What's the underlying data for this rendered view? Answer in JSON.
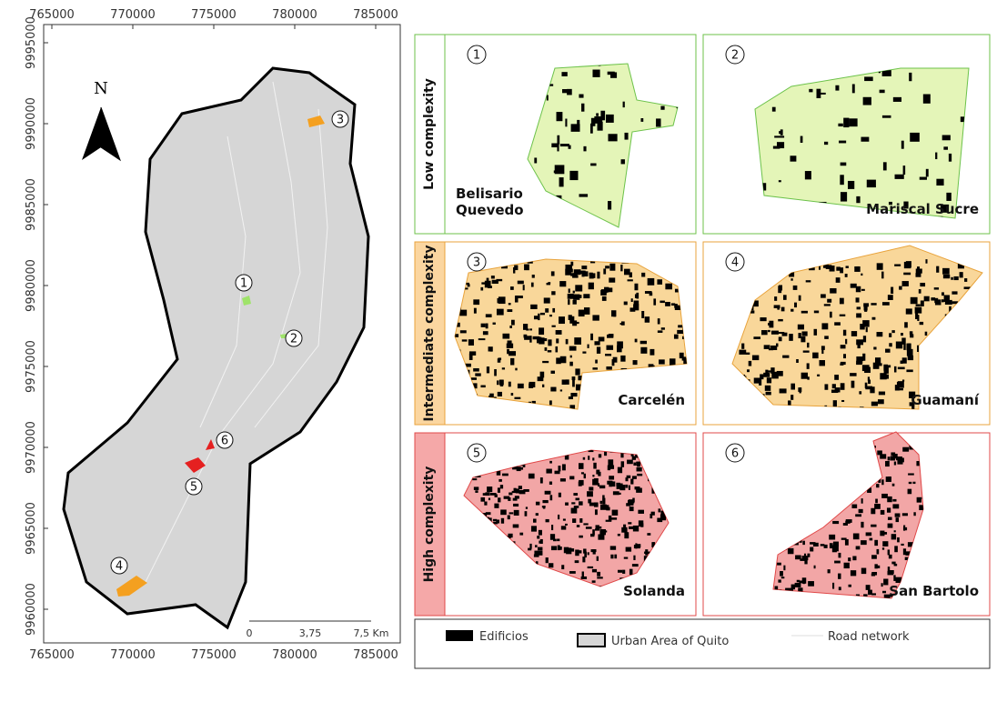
{
  "map": {
    "x_ticks": [
      "765000",
      "770000",
      "775000",
      "780000",
      "785000"
    ],
    "y_ticks": [
      "9995000",
      "9990000",
      "9985000",
      "9980000",
      "9975000",
      "9970000",
      "9965000",
      "9960000"
    ],
    "north": "N",
    "markers": [
      "1",
      "2",
      "3",
      "4",
      "5",
      "6"
    ],
    "scale_bar": [
      "0",
      "3,75",
      "7,5 Km"
    ]
  },
  "panels": {
    "rows": [
      {
        "label": "Low complexity",
        "items": [
          {
            "number": "1",
            "name": "Belisario Quevedo"
          },
          {
            "number": "2",
            "name": "Mariscal Sucre"
          }
        ]
      },
      {
        "label": "Intermediate complexity",
        "items": [
          {
            "number": "3",
            "name": "Carcelén"
          },
          {
            "number": "4",
            "name": "Guamaní"
          }
        ]
      },
      {
        "label": "High complexity",
        "items": [
          {
            "number": "5",
            "name": "Solanda"
          },
          {
            "number": "6",
            "name": "San Bartolo"
          }
        ]
      }
    ]
  },
  "legend": [
    "Edificios",
    "Urban Area of Quito",
    "Road network"
  ]
}
